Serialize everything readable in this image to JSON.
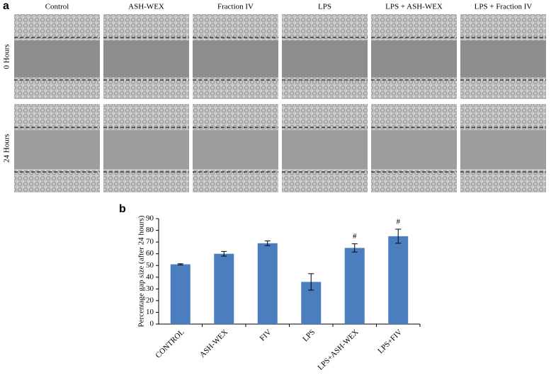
{
  "panel_a": {
    "label": "a",
    "columns": [
      "Control",
      "ASH-WEX",
      "Fraction IV",
      "LPS",
      "LPS + ASH-WEX",
      "LPS + Fraction IV"
    ],
    "rows": [
      "0 Hours",
      "24 Hours"
    ]
  },
  "panel_b": {
    "label": "b"
  },
  "chart_data": {
    "type": "bar",
    "y_label": "Percentage gap size (after 24 hours)",
    "categories": [
      "CONTROL",
      "ASH-WEX",
      "FIV",
      "LPS",
      "LPS+ASH-WEX",
      "LPS+FIV"
    ],
    "values": [
      51,
      60,
      69,
      36,
      65,
      75
    ],
    "errors": [
      0.5,
      2,
      2,
      7,
      3.5,
      6
    ],
    "markers": [
      null,
      null,
      null,
      null,
      "#",
      "#"
    ],
    "color": "#4a7ebf",
    "ylim": [
      0,
      90
    ],
    "yticks": [
      0,
      10,
      20,
      30,
      40,
      50,
      60,
      70,
      80,
      90
    ]
  }
}
